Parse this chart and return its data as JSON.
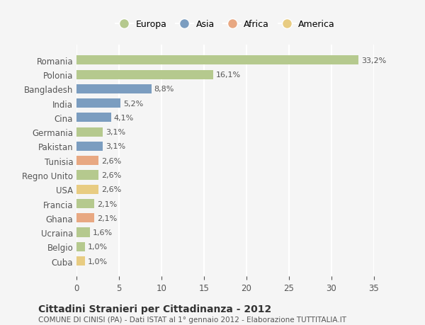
{
  "countries": [
    "Romania",
    "Polonia",
    "Bangladesh",
    "India",
    "Cina",
    "Germania",
    "Pakistan",
    "Tunisia",
    "Regno Unito",
    "USA",
    "Francia",
    "Ghana",
    "Ucraina",
    "Belgio",
    "Cuba"
  ],
  "values": [
    33.2,
    16.1,
    8.8,
    5.2,
    4.1,
    3.1,
    3.1,
    2.6,
    2.6,
    2.6,
    2.1,
    2.1,
    1.6,
    1.0,
    1.0
  ],
  "labels": [
    "33,2%",
    "16,1%",
    "8,8%",
    "5,2%",
    "4,1%",
    "3,1%",
    "3,1%",
    "2,6%",
    "2,6%",
    "2,6%",
    "2,1%",
    "2,1%",
    "1,6%",
    "1,0%",
    "1,0%"
  ],
  "continents": [
    "Europa",
    "Europa",
    "Asia",
    "Asia",
    "Asia",
    "Europa",
    "Asia",
    "Africa",
    "Europa",
    "America",
    "Europa",
    "Africa",
    "Europa",
    "Europa",
    "America"
  ],
  "colors": {
    "Europa": "#b5c98e",
    "Asia": "#7b9dc0",
    "Africa": "#e8a882",
    "America": "#e8cc82"
  },
  "legend_order": [
    "Europa",
    "Asia",
    "Africa",
    "America"
  ],
  "title": "Cittadini Stranieri per Cittadinanza - 2012",
  "subtitle": "COMUNE DI CINISI (PA) - Dati ISTAT al 1° gennaio 2012 - Elaborazione TUTTITALIA.IT",
  "xlim": [
    0,
    35
  ],
  "xticks": [
    0,
    5,
    10,
    15,
    20,
    25,
    30,
    35
  ],
  "bg_color": "#f5f5f5",
  "grid_color": "#ffffff",
  "bar_height": 0.65
}
